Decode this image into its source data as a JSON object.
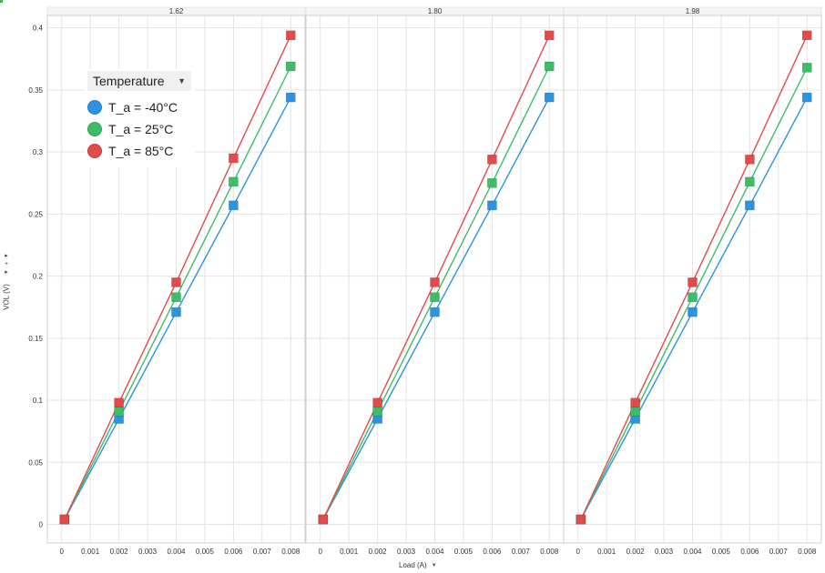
{
  "chart_data": {
    "type": "line",
    "panels": [
      "1.62",
      "1.80",
      "1.98"
    ],
    "xlabel": "Load (A)",
    "ylabel": "VOL (V)",
    "xlim": [
      -0.0005,
      0.0085
    ],
    "ylim": [
      -0.015,
      0.41
    ],
    "xticks": [
      "0",
      "0.001",
      "0.002",
      "0.003",
      "0.004",
      "0.005",
      "0.006",
      "0.007",
      "0.008"
    ],
    "yticks": [
      "0",
      "0.05",
      "0.1",
      "0.15",
      "0.2",
      "0.25",
      "0.3",
      "0.35",
      "0.4"
    ],
    "legend": {
      "title": "Temperature",
      "placement": "top-left"
    },
    "x": [
      0.0001,
      0.002,
      0.004,
      0.006,
      0.008
    ],
    "series": [
      {
        "name": "T_a = -40°C",
        "color": "#2b93e0",
        "values": [
          [
            0.004,
            0.085,
            0.171,
            0.257,
            0.344
          ],
          [
            0.004,
            0.085,
            0.171,
            0.257,
            0.344
          ],
          [
            0.004,
            0.085,
            0.171,
            0.257,
            0.344
          ]
        ]
      },
      {
        "name": "T_a = 25°C",
        "color": "#3dbd68",
        "values": [
          [
            0.004,
            0.091,
            0.183,
            0.276,
            0.369
          ],
          [
            0.004,
            0.091,
            0.183,
            0.275,
            0.369
          ],
          [
            0.004,
            0.091,
            0.183,
            0.276,
            0.368
          ]
        ]
      },
      {
        "name": "T_a = 85°C",
        "color": "#e24b4b",
        "values": [
          [
            0.004,
            0.098,
            0.195,
            0.295,
            0.394
          ],
          [
            0.004,
            0.098,
            0.195,
            0.294,
            0.394
          ],
          [
            0.004,
            0.098,
            0.195,
            0.294,
            0.394
          ]
        ]
      }
    ]
  },
  "grid_color": "#e3e3e3",
  "axis_color": "#cfcfcf",
  "accent": "#3cb44b"
}
